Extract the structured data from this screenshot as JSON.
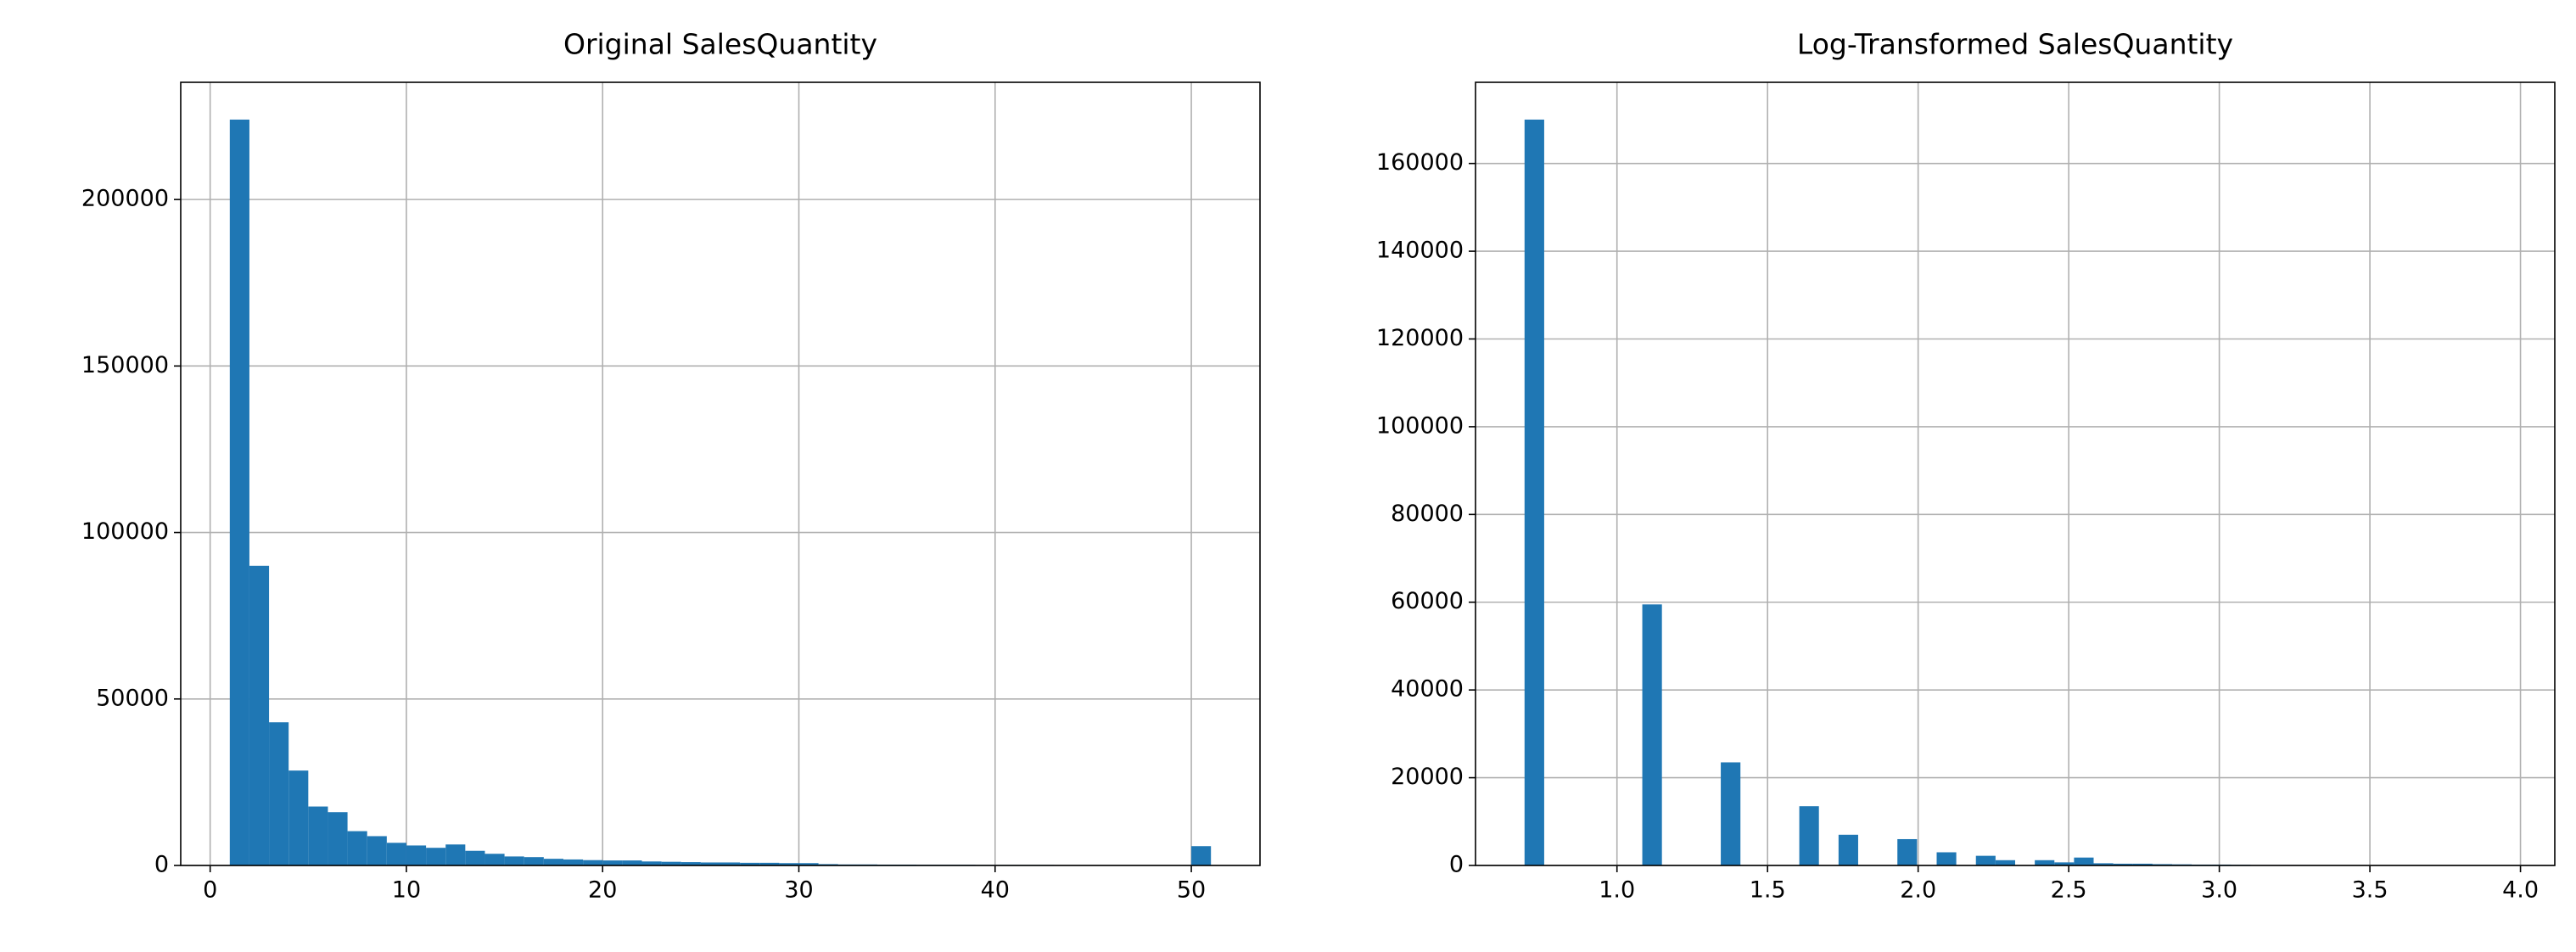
{
  "chart_data": [
    {
      "type": "histogram",
      "title": "Original SalesQuantity",
      "color": "#1f77b4",
      "grid": true,
      "bins": [
        1,
        2,
        3,
        4,
        5,
        6,
        7,
        8,
        9,
        10,
        11,
        12,
        13,
        14,
        15,
        16,
        17,
        18,
        19,
        20,
        21,
        22,
        23,
        24,
        25,
        26,
        27,
        28,
        29,
        30,
        31,
        32,
        33,
        34,
        35,
        36,
        37,
        38,
        39,
        40,
        41,
        42,
        43,
        44,
        45,
        46,
        47,
        48,
        49,
        50,
        51
      ],
      "counts": [
        224000,
        90000,
        43000,
        28500,
        17700,
        16000,
        10300,
        8800,
        6800,
        6000,
        5300,
        6300,
        4400,
        3500,
        2700,
        2500,
        2000,
        1800,
        1600,
        1500,
        1500,
        1200,
        1100,
        1000,
        900,
        900,
        800,
        800,
        700,
        700,
        400,
        300,
        300,
        250,
        250,
        200,
        200,
        200,
        150,
        150,
        150,
        150,
        100,
        100,
        100,
        100,
        100,
        100,
        100,
        5800
      ],
      "xlim": [
        -1.5,
        53.5
      ],
      "xticks": [
        0,
        10,
        20,
        30,
        40,
        50
      ],
      "ylim": [
        0,
        235200
      ],
      "yticks": [
        0,
        50000,
        100000,
        150000,
        200000
      ]
    },
    {
      "type": "histogram",
      "title": "Log-Transformed SalesQuantity",
      "color": "#1f77b4",
      "grid": true,
      "bins": [
        0.6931,
        0.7583,
        0.8235,
        0.8886,
        0.9538,
        1.0189,
        1.0841,
        1.1492,
        1.2144,
        1.2796,
        1.3447,
        1.4099,
        1.475,
        1.5402,
        1.6054,
        1.6705,
        1.7357,
        1.8008,
        1.866,
        1.9311,
        1.9963,
        2.0615,
        2.1266,
        2.1918,
        2.2569,
        2.3221,
        2.3873,
        2.4524,
        2.5176,
        2.5827,
        2.6479,
        2.7131,
        2.7782,
        2.8434,
        2.9085,
        2.9737,
        3.0389,
        3.104,
        3.1692,
        3.2343,
        3.2995,
        3.3646,
        3.4298,
        3.495,
        3.5601,
        3.6253,
        3.6904,
        3.7556,
        3.8208,
        3.8859,
        3.9511
      ],
      "counts": [
        170000,
        0,
        0,
        0,
        0,
        0,
        59500,
        0,
        0,
        0,
        23500,
        0,
        0,
        0,
        13500,
        0,
        7000,
        0,
        0,
        6000,
        0,
        3000,
        0,
        2200,
        1200,
        0,
        1200,
        700,
        1800,
        500,
        400,
        400,
        300,
        250,
        200,
        200,
        150,
        100,
        100,
        100,
        80,
        80,
        60,
        60,
        50,
        50,
        50,
        50,
        50,
        50
      ],
      "xlim": [
        0.5303,
        4.1139
      ],
      "xticks": [
        {
          "value": 1,
          "label": "1.0"
        },
        1.5,
        {
          "value": 2,
          "label": "2.0"
        },
        2.5,
        {
          "value": 3,
          "label": "3.0"
        },
        3.5,
        {
          "value": 4,
          "label": "4.0"
        }
      ],
      "ylim": [
        0,
        178500
      ],
      "yticks": [
        0,
        20000,
        40000,
        60000,
        80000,
        100000,
        120000,
        140000,
        160000
      ]
    }
  ]
}
